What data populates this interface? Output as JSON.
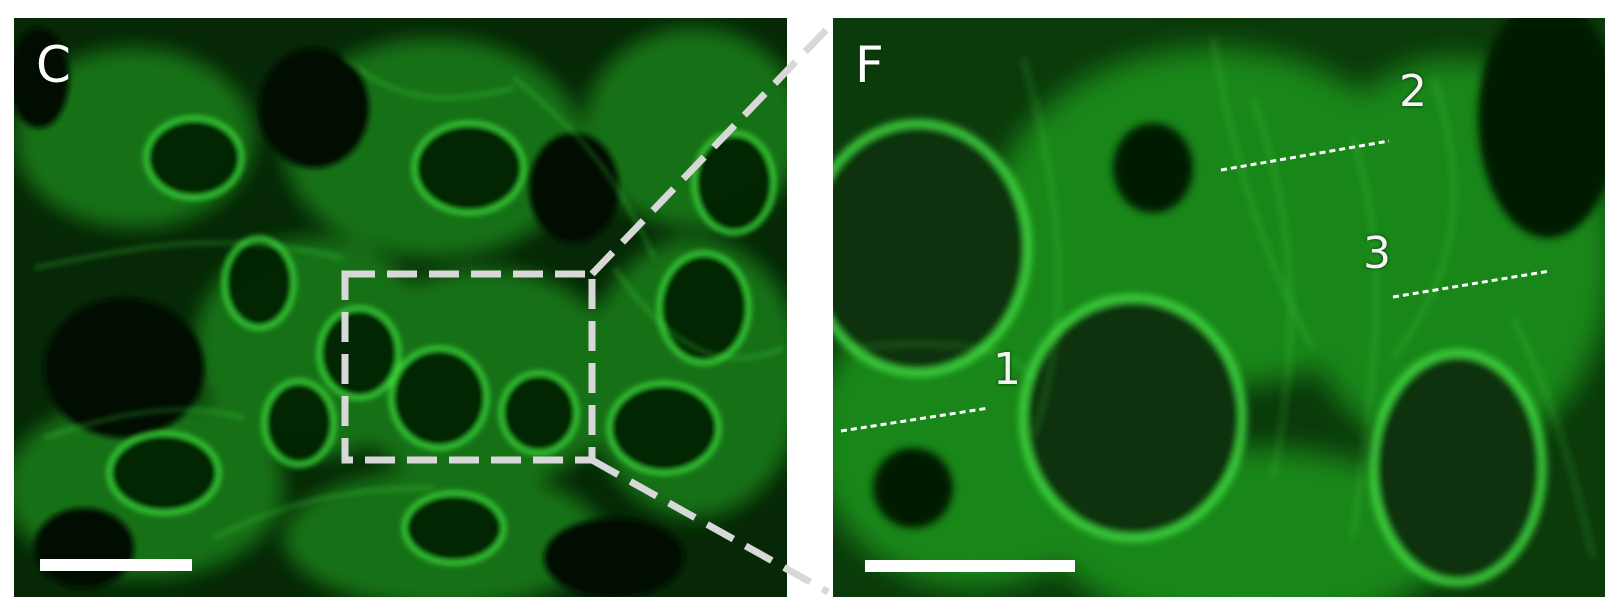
{
  "panels": {
    "overview": {
      "label": "C"
    },
    "zoom": {
      "label": "F"
    }
  },
  "line_profiles": [
    {
      "label": "1"
    },
    {
      "label": "2"
    },
    {
      "label": "3"
    }
  ],
  "colors": {
    "fluorescence": "#2bd62b",
    "background": "#031a03",
    "annotation": "#ffffff",
    "inset_box": "#d8d8d8"
  }
}
